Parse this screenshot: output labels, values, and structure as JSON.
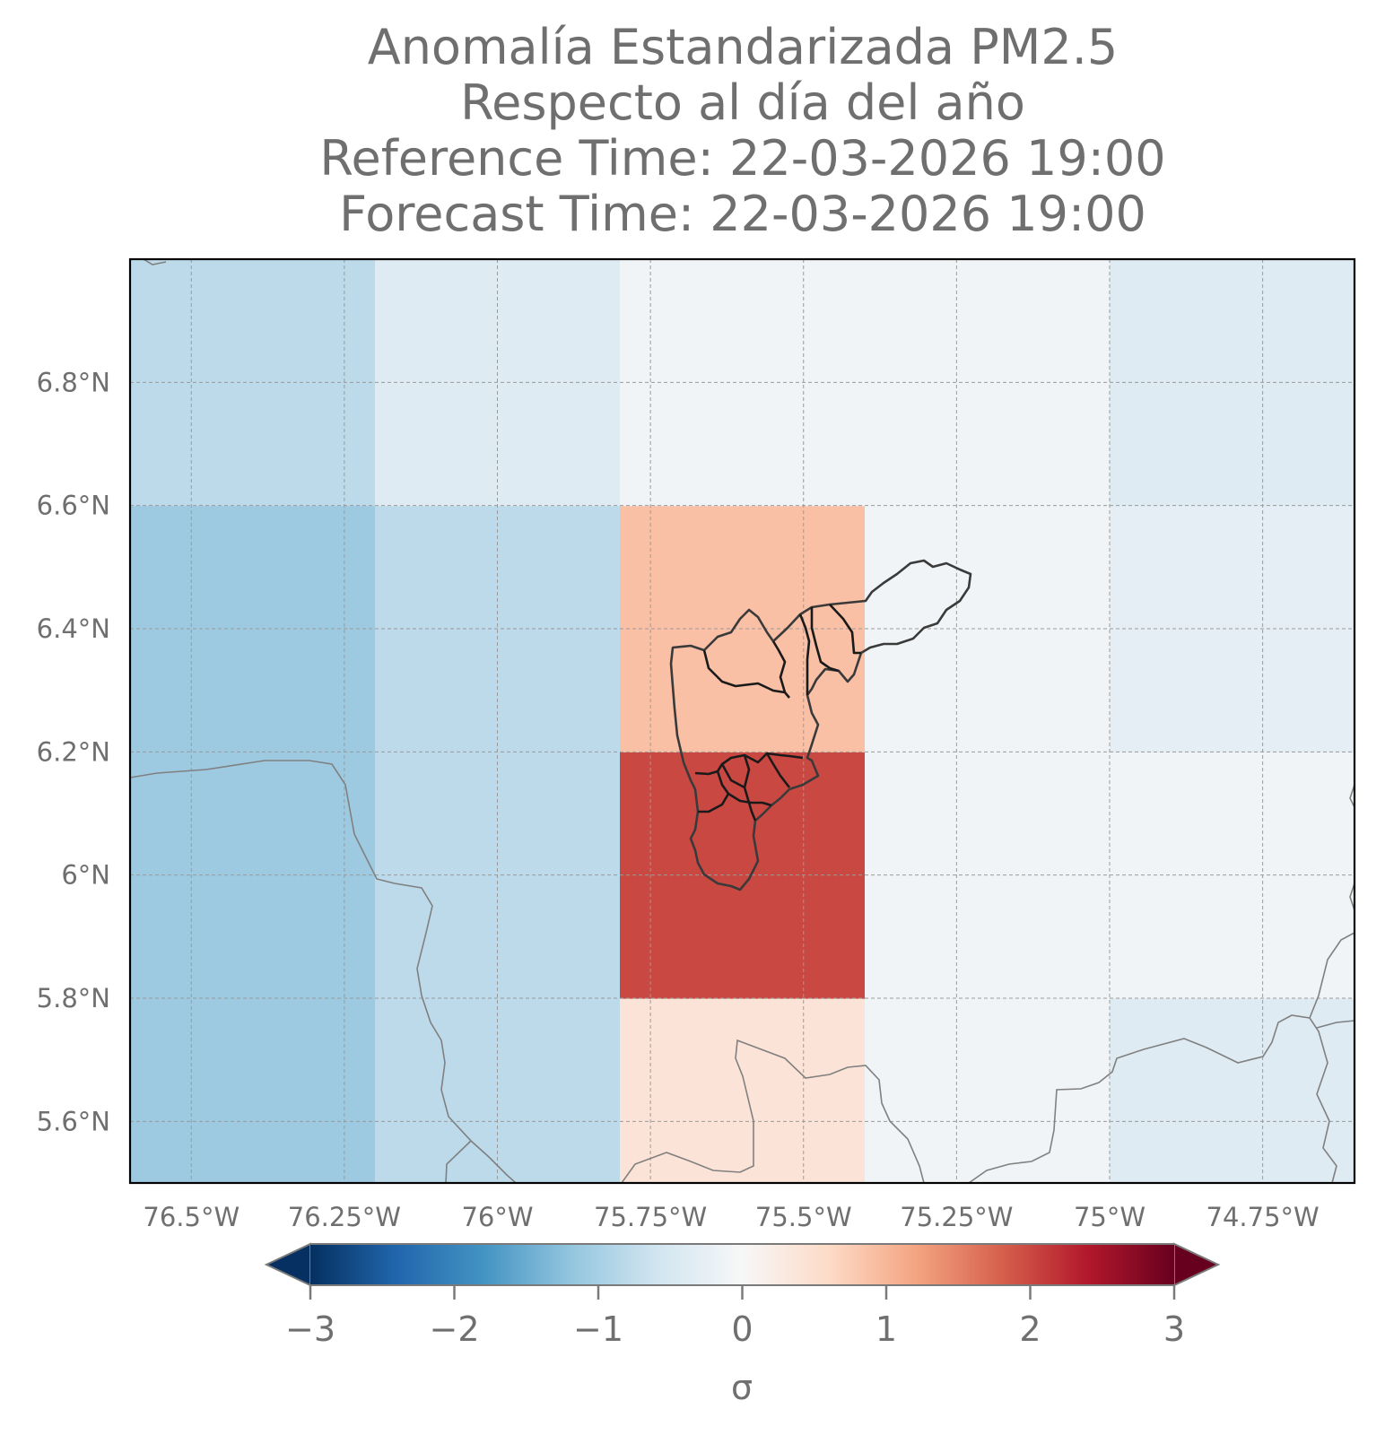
{
  "title_lines": [
    "Anomalía Estandarizada PM2.5",
    "Respecto al día del año",
    "Reference Time: 22-03-2026 19:00",
    "Forecast Time: 22-03-2026 19:00"
  ],
  "chart_data": {
    "type": "heatmap",
    "lon_range": [
      -76.6,
      -74.6
    ],
    "lat_range": [
      5.5,
      7.0
    ],
    "x_ticks": [
      {
        "value": -76.5,
        "label": "76.5°W"
      },
      {
        "value": -76.25,
        "label": "76.25°W"
      },
      {
        "value": -76.0,
        "label": "76°W"
      },
      {
        "value": -75.75,
        "label": "75.75°W"
      },
      {
        "value": -75.5,
        "label": "75.5°W"
      },
      {
        "value": -75.25,
        "label": "75.25°W"
      },
      {
        "value": -75.0,
        "label": "75°W"
      },
      {
        "value": -74.75,
        "label": "74.75°W"
      }
    ],
    "y_ticks": [
      {
        "value": 5.6,
        "label": "5.6°N"
      },
      {
        "value": 5.8,
        "label": "5.8°N"
      },
      {
        "value": 6.0,
        "label": "6°N"
      },
      {
        "value": 6.2,
        "label": "6.2°N"
      },
      {
        "value": 6.4,
        "label": "6.4°N"
      },
      {
        "value": 6.6,
        "label": "6.6°N"
      },
      {
        "value": 6.8,
        "label": "6.8°N"
      }
    ],
    "cell_lon_edges": [
      -76.6,
      -76.2,
      -75.8,
      -75.4,
      -75.0,
      -74.6
    ],
    "cell_lat_edges": [
      5.4,
      5.8,
      6.2,
      6.6,
      7.0
    ],
    "cells": [
      [
        -1.1,
        -0.8,
        0.4,
        -0.1,
        -0.4
      ],
      [
        -1.1,
        -0.8,
        2.0,
        -0.1,
        -0.1
      ],
      [
        -1.1,
        -0.8,
        0.9,
        -0.1,
        -0.3
      ],
      [
        -0.8,
        -0.4,
        -0.1,
        -0.1,
        -0.4
      ]
    ],
    "colorbar": {
      "min": -3,
      "max": 3,
      "ticks": [
        {
          "value": -3,
          "label": "−3"
        },
        {
          "value": -2,
          "label": "−2"
        },
        {
          "value": -1,
          "label": "−1"
        },
        {
          "value": 0,
          "label": "0"
        },
        {
          "value": 1,
          "label": "1"
        },
        {
          "value": 2,
          "label": "2"
        },
        {
          "value": 3,
          "label": "3"
        }
      ],
      "label": "σ",
      "extend": "both",
      "colormap": "RdBu_r"
    },
    "grid": true,
    "overlays": [
      "coastline-and-borders",
      "municipal-boundaries"
    ]
  }
}
